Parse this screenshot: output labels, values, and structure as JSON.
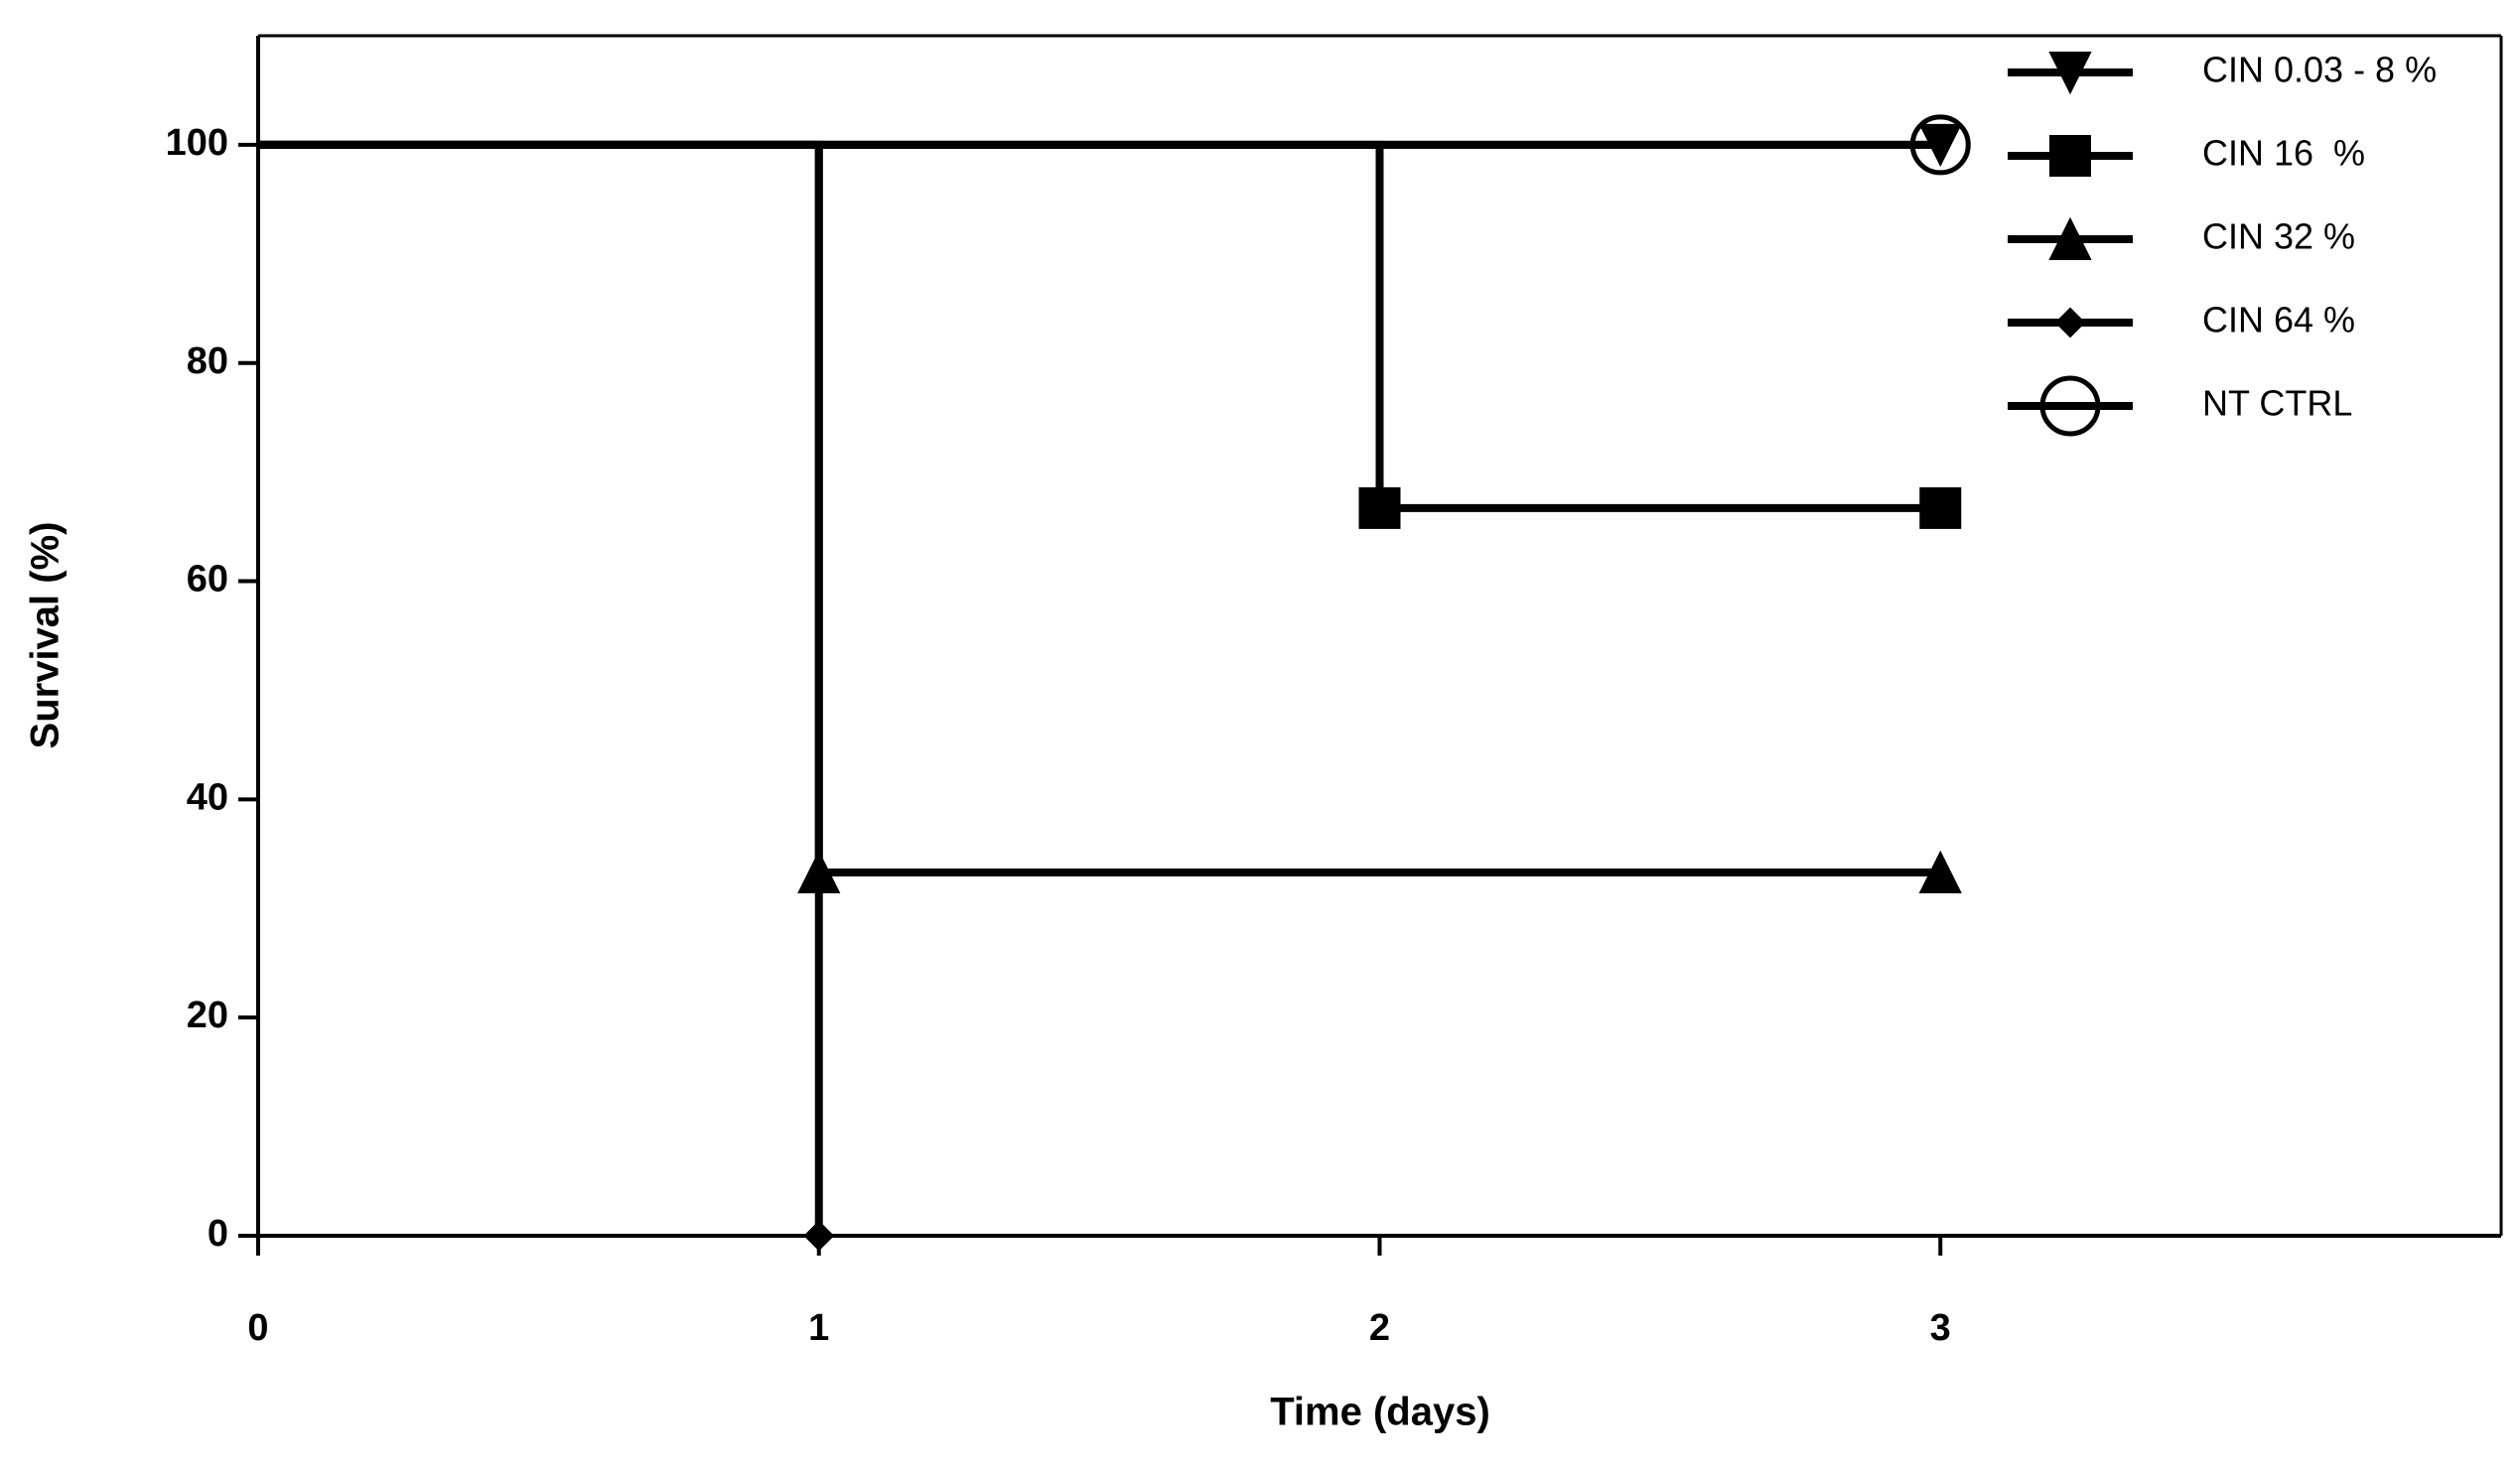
{
  "chart_data": {
    "type": "step",
    "x_label": "Time (days)",
    "y_label": "Survival (%)",
    "xlim": [
      0,
      4
    ],
    "xticks": [
      0,
      1,
      2,
      3
    ],
    "ylim": [
      0,
      110
    ],
    "yticks": [
      0,
      20,
      40,
      60,
      80,
      100
    ],
    "legend": "top-right",
    "series": [
      {
        "name": "CIN 0.03 - 8 %",
        "color": "#000000",
        "marker": "triangle-down",
        "x": [
          0,
          3
        ],
        "values": [
          100,
          100
        ]
      },
      {
        "name": "CIN 16  %",
        "color": "#000000",
        "marker": "square",
        "x": [
          0,
          2,
          3
        ],
        "values": [
          100,
          66.7,
          66.7
        ]
      },
      {
        "name": "CIN 32 %",
        "color": "#000000",
        "marker": "triangle-up",
        "x": [
          0,
          1,
          3
        ],
        "values": [
          100,
          33.3,
          33.3
        ]
      },
      {
        "name": "CIN 64 %",
        "color": "#000000",
        "marker": "diamond",
        "x": [
          0,
          1
        ],
        "values": [
          100,
          0
        ]
      },
      {
        "name": "NT CTRL",
        "color": "#000000",
        "marker": "circle-open",
        "x": [
          0,
          3
        ],
        "values": [
          100,
          100
        ]
      }
    ]
  }
}
